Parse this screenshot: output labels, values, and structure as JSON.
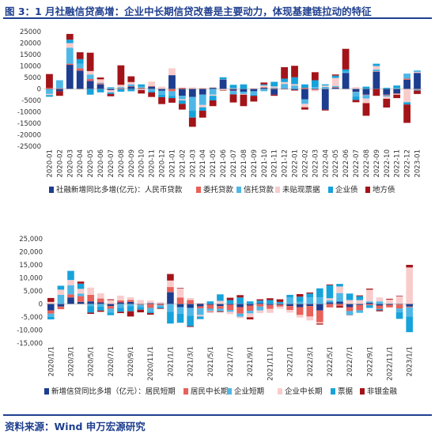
{
  "figure_title": "图 3：1 月社融信贷高增：企业中长期信贷改善是主要动力，体现基建链拉动的特征",
  "source": "资料来源：Wind  申万宏源研究",
  "colors": {
    "title": "#1f3f8f",
    "c1": [
      "#1d3d8f",
      "#e8615a",
      "#4fb7e6",
      "#f9cccc",
      "#16a3db",
      "#a31419"
    ],
    "c2": [
      "#1d3d8f",
      "#e8615a",
      "#4fb7e6",
      "#f9cccc",
      "#16a3db",
      "#a31419"
    ]
  },
  "chart_data": [
    {
      "type": "bar",
      "stacked": true,
      "grid": false,
      "legend_position": "bottom",
      "ylim": [
        -25000,
        25000
      ],
      "yticks": [
        "25000",
        "20000",
        "15000",
        "10000",
        "5000",
        "0",
        "-5000",
        "-10000",
        "-15000",
        "-20000",
        "-25000"
      ],
      "x_tick_labels": [
        "2020-01",
        "2020-02",
        "2020-03",
        "2020-04",
        "2020-05",
        "2020-06",
        "2020-07",
        "2020-08",
        "2020-09",
        "2020-10",
        "2020-11",
        "2020-12",
        "2021-01",
        "2021-02",
        "2021-03",
        "2021-04",
        "2021-05",
        "2021-06",
        "2021-07",
        "2021-08",
        "2021-09",
        "2021-10",
        "2021-11",
        "2021-12",
        "2022-01",
        "2022-02",
        "2022-03",
        "2022-04",
        "2022-05",
        "2022-06",
        "2022-07",
        "2022-08",
        "2022-09",
        "2022-10",
        "2022-11",
        "2022-12",
        "2023-01"
      ],
      "series": [
        {
          "name": "社融新增同比多增(亿元)：人民币贷款",
          "values": [
            -200,
            -1000,
            10500,
            8000,
            3500,
            2000,
            -500,
            -200,
            1000,
            200,
            1000,
            -800,
            6000,
            -3000,
            -3500,
            -2500,
            500,
            4000,
            -700,
            -1200,
            -1000,
            500,
            -2500,
            -200,
            -500,
            -4500,
            -200,
            -9000,
            500,
            7000,
            -1200,
            -2500,
            7500,
            -2500,
            -2000,
            4000,
            7000
          ]
        },
        {
          "name": "委托贷款",
          "values": [
            500,
            300,
            500,
            1000,
            800,
            400,
            0,
            300,
            200,
            300,
            200,
            0,
            -1000,
            500,
            200,
            300,
            100,
            100,
            -200,
            0,
            100,
            200,
            300,
            200,
            -300,
            500,
            -300,
            100,
            300,
            0,
            -100,
            -200,
            200,
            -300,
            -200,
            500,
            -300
          ]
        },
        {
          "name": "信托贷款",
          "values": [
            -2000,
            3500,
            7000,
            2000,
            2000,
            300,
            800,
            500,
            800,
            500,
            -1000,
            -1800,
            -2000,
            -1500,
            -6000,
            -4500,
            -2500,
            0,
            -1500,
            -1000,
            -1500,
            -1000,
            300,
            2000,
            1500,
            -2000,
            800,
            800,
            500,
            500,
            -2000,
            -1500,
            800,
            -500,
            500,
            2200,
            -400
          ]
        },
        {
          "name": "未贴现票据",
          "values": [
            -500,
            0,
            2000,
            -300,
            1500,
            1500,
            -1000,
            1000,
            1000,
            -500,
            2000,
            1000,
            3000,
            -500,
            500,
            -1000,
            -500,
            -500,
            300,
            -300,
            300,
            800,
            500,
            800,
            600,
            -1500,
            -500,
            600,
            3500,
            -200,
            800,
            -2000,
            1500,
            -1000,
            -300,
            -5800,
            500
          ]
        },
        {
          "name": "企业债",
          "values": [
            -700,
            0,
            1500,
            2000,
            -2500,
            -1500,
            -700,
            -1000,
            -1000,
            1000,
            -500,
            -1000,
            -1000,
            -1500,
            -3000,
            -1500,
            -2000,
            1000,
            1500,
            2000,
            -500,
            500,
            2000,
            1500,
            3000,
            1500,
            3000,
            500,
            1000,
            1000,
            -1500,
            1000,
            1000,
            500,
            1000,
            -1000,
            500
          ]
        },
        {
          "name": "地方债",
          "values": [
            6000,
            -2000,
            2500,
            3000,
            8000,
            800,
            -1000,
            8500,
            2500,
            -1500,
            -2000,
            -3000,
            -2000,
            -2500,
            -4000,
            -3000,
            -2500,
            -200,
            -3500,
            -5000,
            -2500,
            800,
            -500,
            5000,
            5000,
            -1000,
            3500,
            -400,
            500,
            9000,
            -1000,
            -5500,
            -3000,
            -3800,
            -1500,
            -8000,
            -1500
          ]
        }
      ]
    },
    {
      "type": "bar",
      "stacked": true,
      "grid": false,
      "legend_position": "bottom",
      "ylim": [
        -15000,
        25000
      ],
      "yticks": [
        "25,000",
        "20,000",
        "15,000",
        "10,000",
        "5,000",
        "0",
        "-5,000",
        "-10,000",
        "-15,000"
      ],
      "x_tick_labels": [
        "2020/1/1",
        "2020/3/1",
        "2020/5/1",
        "2020/7/1",
        "2020/9/1",
        "2020/11/1",
        "2021/1/1",
        "2021/3/1",
        "2021/5/1",
        "2021/7/1",
        "2021/9/1",
        "2021/11/1",
        "2022/1/1",
        "2022/3/1",
        "2022/5/1",
        "2022/7/1",
        "2022/9/1",
        "2022/11/1",
        "2023/1/1"
      ],
      "series": [
        {
          "name": "新增信贷同比多增（亿元）：居民短期",
          "values": [
            -2500,
            -1000,
            2500,
            800,
            1000,
            600,
            -800,
            600,
            800,
            -100,
            300,
            200,
            4500,
            -1200,
            -1500,
            -900,
            -300,
            -800,
            -300,
            -1200,
            -600,
            300,
            -400,
            -300,
            -800,
            -1200,
            -800,
            -2500,
            600,
            900,
            -1200,
            -400,
            500,
            -600,
            -300,
            -200,
            -1000
          ]
        },
        {
          "name": "居民中长期",
          "values": [
            -1200,
            -1000,
            1200,
            2200,
            2500,
            1500,
            -1000,
            800,
            800,
            -200,
            -1500,
            -500,
            2000,
            2500,
            1500,
            -800,
            -1500,
            -1000,
            -2000,
            -2500,
            -2000,
            -1000,
            -1500,
            -700,
            -1500,
            -3000,
            -4000,
            -4500,
            -1300,
            -800,
            -1500,
            -2000,
            -500,
            -1300,
            -1000,
            -1500,
            -300
          ]
        },
        {
          "name": "企业短期",
          "values": [
            -1200,
            3500,
            3500,
            1000,
            -800,
            -1000,
            -1500,
            -1500,
            -800,
            -900,
            -1500,
            -700,
            -3000,
            -2500,
            -3000,
            -2500,
            -800,
            -1000,
            -700,
            -1200,
            -1000,
            -1500,
            0,
            300,
            2500,
            800,
            2500,
            2500,
            800,
            3300,
            -1500,
            -1000,
            500,
            1000,
            200,
            -1500,
            -3500
          ]
        },
        {
          "name": "企业中长期",
          "values": [
            800,
            2000,
            2000,
            1800,
            2800,
            2000,
            1500,
            1800,
            1000,
            1500,
            1000,
            500,
            2500,
            3500,
            800,
            -600,
            -400,
            1200,
            -900,
            -500,
            -1500,
            -1000,
            -1500,
            -800,
            -1000,
            -1000,
            -1500,
            -500,
            800,
            2500,
            1500,
            1500,
            4500,
            1500,
            1500,
            3000,
            14000
          ]
        },
        {
          "name": "票据",
          "values": [
            -1000,
            1500,
            3500,
            2000,
            -2500,
            -1500,
            -1000,
            -1500,
            -2000,
            -1000,
            -500,
            -500,
            -4500,
            -3500,
            -4000,
            -1000,
            1000,
            2500,
            1500,
            2500,
            1000,
            1000,
            1500,
            500,
            1000,
            2000,
            1500,
            3500,
            5000,
            1000,
            2500,
            1500,
            -1000,
            -500,
            0,
            -2500,
            -6000
          ]
        },
        {
          "name": "非银金融",
          "values": [
            1500,
            0,
            0,
            800,
            -500,
            -500,
            300,
            -500,
            -2000,
            -1000,
            -600,
            -200,
            2500,
            200,
            -300,
            200,
            -200,
            -300,
            900,
            900,
            -800,
            500,
            700,
            1000,
            0,
            1000,
            400,
            -400,
            300,
            -600,
            -100,
            300,
            400,
            -400,
            300,
            200,
            1000
          ]
        }
      ]
    }
  ]
}
